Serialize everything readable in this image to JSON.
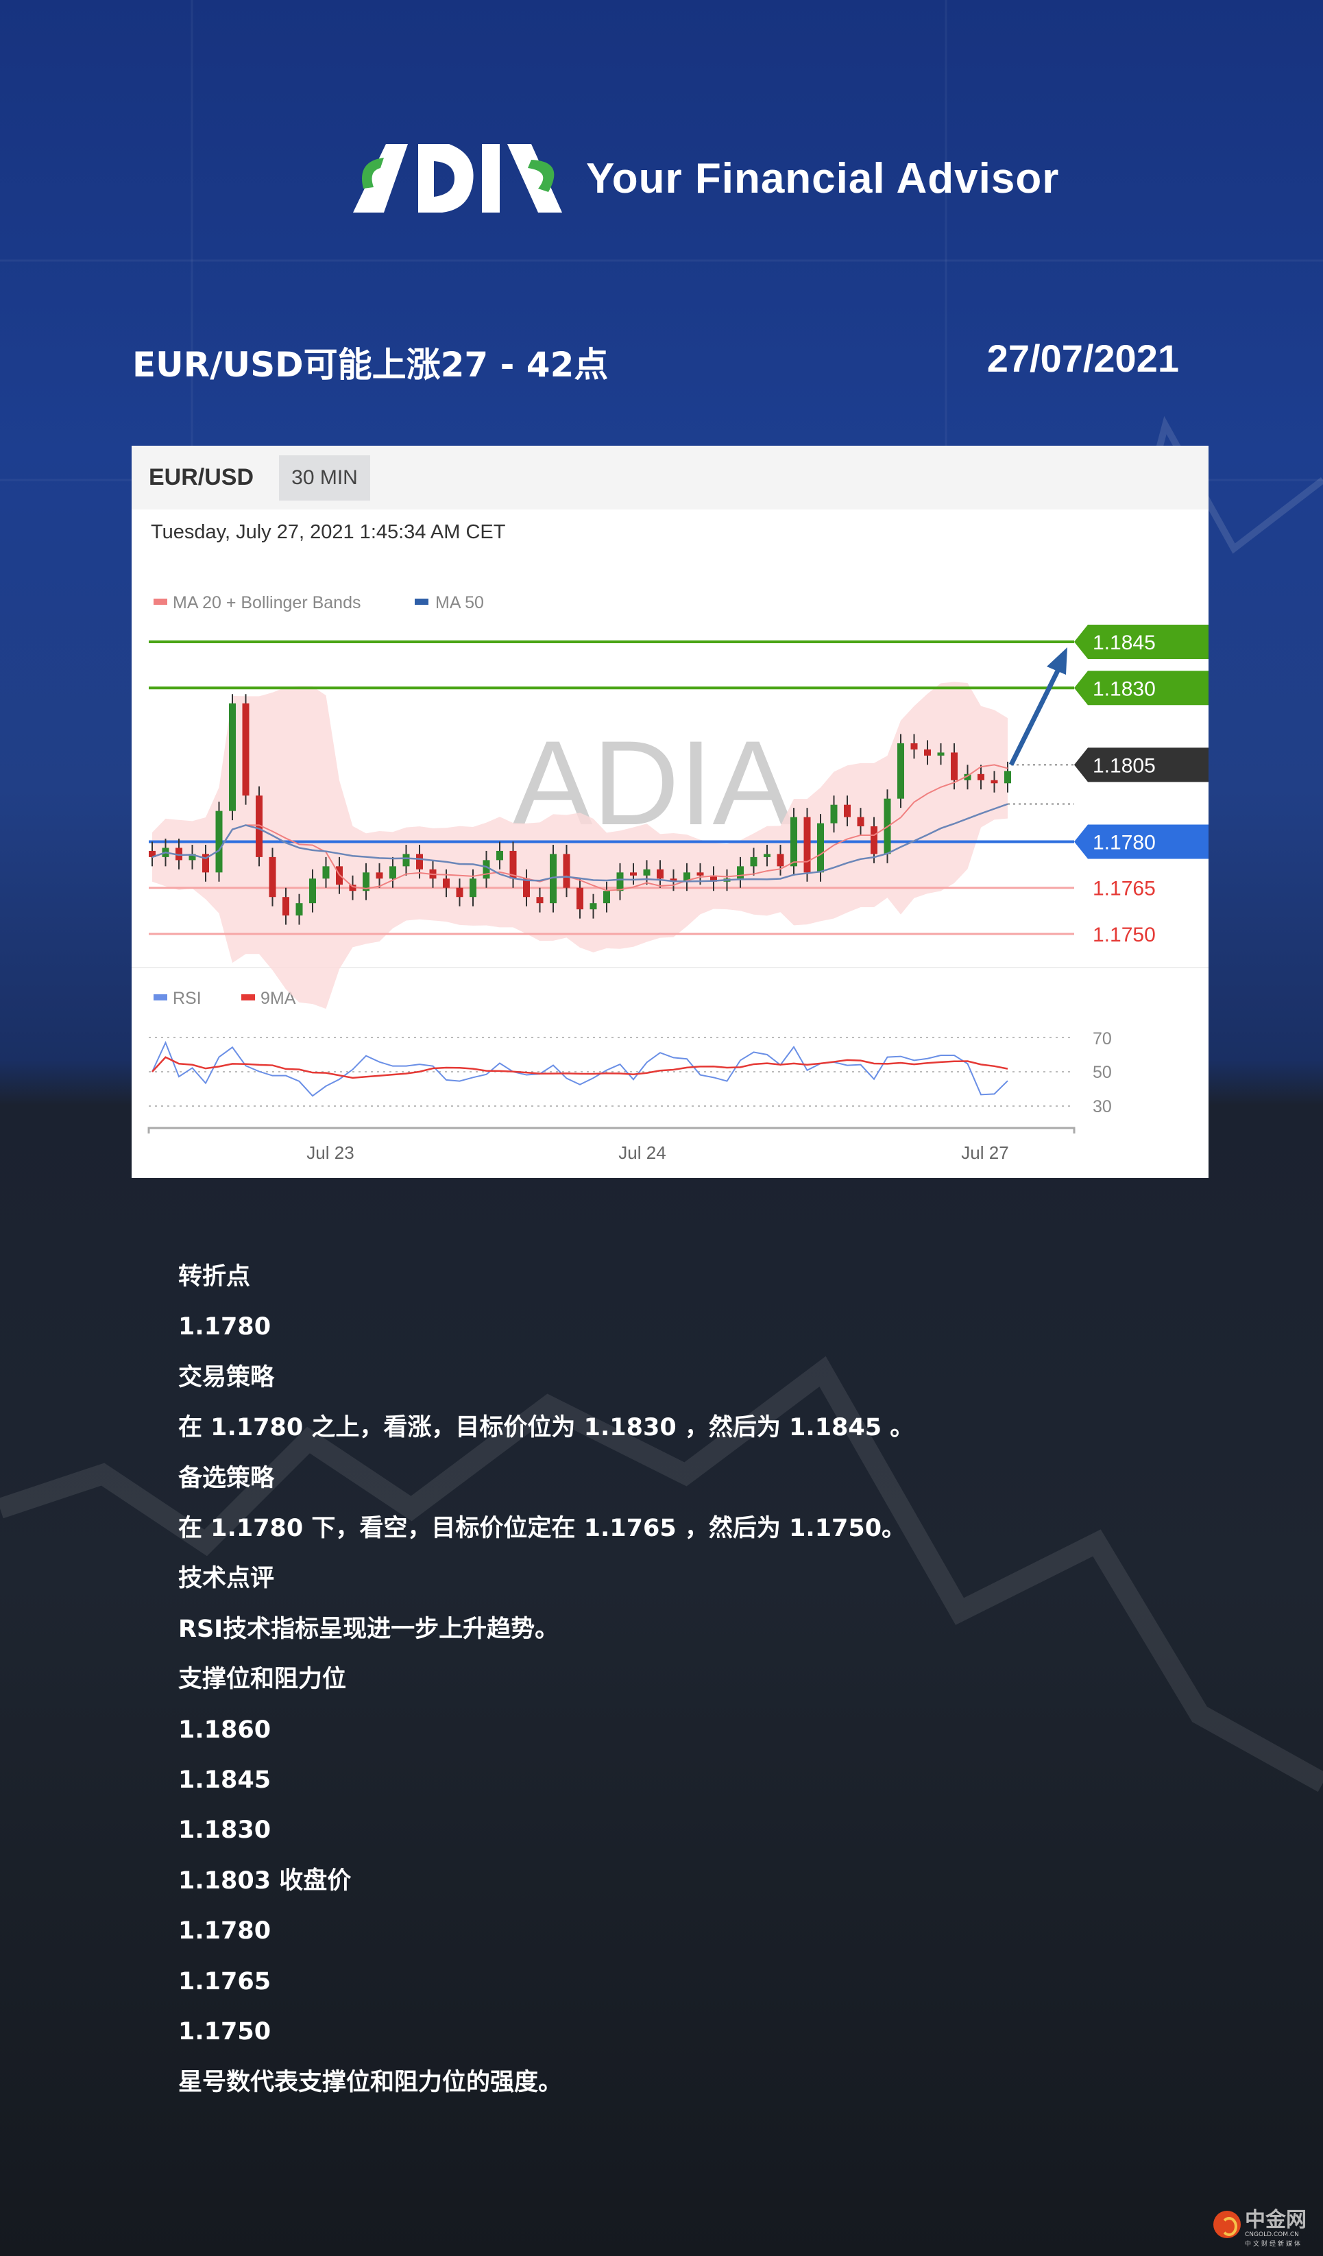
{
  "header": {
    "logo_text": "ADIA",
    "tagline": "Your Financial Advisor"
  },
  "title": "EUR/USD可能上涨27 - 42点",
  "date": "27/07/2021",
  "panel": {
    "pair": "EUR/USD",
    "timeframe": "30 MIN",
    "timestamp": "Tuesday, July 27, 2021 1:45:34 AM CET",
    "watermark": "ADIA"
  },
  "chart_data": {
    "type": "candlestick",
    "legend": [
      {
        "name": "MA 20 + Bollinger Bands",
        "color": "#f08080"
      },
      {
        "name": "MA 50",
        "color": "#2f5fa8"
      }
    ],
    "levels": [
      {
        "value": 1.1845,
        "label": "1.1845",
        "style": "resistance",
        "color": "#4aa516"
      },
      {
        "value": 1.183,
        "label": "1.1830",
        "style": "resistance",
        "color": "#4aa516"
      },
      {
        "value": 1.1805,
        "label": "1.1805",
        "style": "current",
        "color": "#333333"
      },
      {
        "value": 1.178,
        "label": "1.1780",
        "style": "pivot",
        "color": "#2e6fdf"
      },
      {
        "value": 1.1765,
        "label": "1.1765",
        "style": "support",
        "color": "#e53935"
      },
      {
        "value": 1.175,
        "label": "1.1750",
        "style": "support",
        "color": "#e53935"
      }
    ],
    "closes": [
      1.1775,
      1.1778,
      1.1774,
      1.1776,
      1.177,
      1.179,
      1.1825,
      1.1795,
      1.1775,
      1.1762,
      1.1756,
      1.176,
      1.1768,
      1.1772,
      1.1766,
      1.1764,
      1.177,
      1.1768,
      1.1772,
      1.1776,
      1.1771,
      1.1768,
      1.1765,
      1.1762,
      1.1768,
      1.1774,
      1.1777,
      1.1768,
      1.1762,
      1.176,
      1.1776,
      1.1765,
      1.1758,
      1.176,
      1.1764,
      1.177,
      1.1769,
      1.1771,
      1.1768,
      1.1767,
      1.177,
      1.1769,
      1.1767,
      1.1768,
      1.1772,
      1.1775,
      1.1776,
      1.1772,
      1.1788,
      1.177,
      1.1786,
      1.1792,
      1.1788,
      1.1785,
      1.1776,
      1.1794,
      1.1812,
      1.181,
      1.1808,
      1.1809,
      1.18,
      1.1802,
      1.18,
      1.1799,
      1.1803
    ],
    "forecast_arrow": {
      "from": 1.1805,
      "to": 1.1845,
      "color": "#2b5fa3"
    },
    "rsi": {
      "legend": [
        {
          "name": "RSI",
          "color": "#6a8fe6"
        },
        {
          "name": "9MA",
          "color": "#e53935"
        }
      ],
      "ticks": [
        "70",
        "50",
        "30"
      ],
      "ylim": [
        30,
        70
      ]
    },
    "x_ticks": [
      "Jul 23",
      "Jul 24",
      "Jul 27"
    ]
  },
  "content": [
    "转折点",
    "1.1780",
    "交易策略",
    "在 1.1780 之上，看涨，目标价位为 1.1830 ，然后为 1.1845 。",
    "备选策略",
    "在 1.1780 下，看空，目标价位定在 1.1765 ，然后为 1.1750。",
    "技术点评",
    "RSI技术指标呈现进一步上升趋势。",
    "支撑位和阻力位",
    "1.1860",
    "1.1845",
    "1.1830",
    "1.1803 收盘价",
    "1.1780",
    "1.1765",
    "1.1750",
    "星号数代表支撑位和阻力位的强度。"
  ],
  "source_logo": {
    "name": "中金网",
    "url": "CNGOLD.COM.CN",
    "slogan": "中文财经新媒体"
  }
}
